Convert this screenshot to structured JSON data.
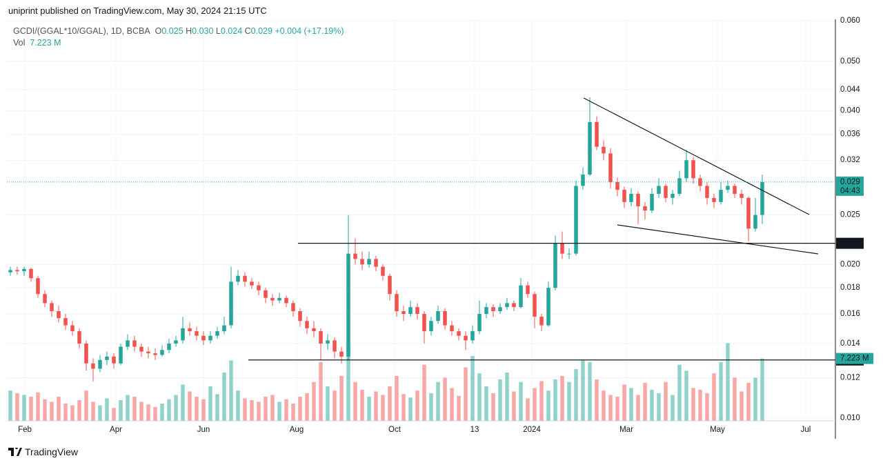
{
  "header": {
    "published": "uniprint published on TradingView.com, May 30, 2024 21:15 UTC",
    "symbol": "GCDI/(GGAL*10/GGAL), 1D, BCBA",
    "legend": [
      {
        "key": "O",
        "value": 0.025
      },
      {
        "key": "H",
        "value": 0.03,
        "label": "0.030"
      },
      {
        "key": "L",
        "value": 0.024
      },
      {
        "key": "C",
        "value": 0.029
      }
    ],
    "change": "+0.004 (+17.19%)",
    "vol_key": "Vol",
    "vol_value": "7.223 M"
  },
  "chart_data": {
    "type": "candlestick",
    "log_scale": true,
    "grid": true,
    "up_color": "#26a69a",
    "down_color": "#ef5350",
    "xlim": [
      -0.5,
      119.5
    ],
    "xticks": [
      {
        "value": 2.1,
        "label": "Feb"
      },
      {
        "value": 15.3,
        "label": "Apr"
      },
      {
        "value": 28,
        "label": "Jun"
      },
      {
        "value": 41.5,
        "label": "Aug"
      },
      {
        "value": 55.7,
        "label": "Oct"
      },
      {
        "value": 67.3,
        "label": "13"
      },
      {
        "value": 75.6,
        "label": "2024"
      },
      {
        "value": 89.3,
        "label": "Mar"
      },
      {
        "value": 102.5,
        "label": "May"
      },
      {
        "value": 115.3,
        "label": "Jul"
      }
    ],
    "ylim": [
      0.00988,
      0.0604
    ],
    "yticks": [
      {
        "value": 0.01,
        "label": "0.010"
      },
      0.012,
      0.014,
      0.016,
      0.018,
      {
        "value": 0.02,
        "label": "0.020"
      },
      0.025,
      0.032,
      0.036,
      {
        "value": 0.04,
        "label": "0.040"
      },
      0.044,
      {
        "value": 0.05,
        "label": "0.050"
      },
      {
        "value": 0.06,
        "label": "0.060"
      }
    ],
    "vlim": [
      0,
      46.5
    ],
    "candles": [
      [
        0.0193,
        0.0198,
        0.019,
        0.0195
      ],
      [
        0.0195,
        0.0198,
        0.0191,
        0.0194
      ],
      [
        0.0194,
        0.0198,
        0.019,
        0.0196
      ],
      [
        0.0196,
        0.0197,
        0.0185,
        0.0188
      ],
      [
        0.0188,
        0.019,
        0.0172,
        0.0175
      ],
      [
        0.0175,
        0.0178,
        0.0165,
        0.0168
      ],
      [
        0.0168,
        0.017,
        0.0158,
        0.0162
      ],
      [
        0.0162,
        0.0166,
        0.0154,
        0.0157
      ],
      [
        0.0157,
        0.016,
        0.0149,
        0.0152
      ],
      [
        0.0152,
        0.0155,
        0.0145,
        0.0148
      ],
      [
        0.0148,
        0.015,
        0.0137,
        0.014
      ],
      [
        0.014,
        0.0142,
        0.0124,
        0.0128
      ],
      [
        0.0128,
        0.0131,
        0.0118,
        0.0125
      ],
      [
        0.0125,
        0.0133,
        0.0123,
        0.013
      ],
      [
        0.013,
        0.0135,
        0.0127,
        0.0132
      ],
      [
        0.0132,
        0.0134,
        0.0125,
        0.0128
      ],
      [
        0.0128,
        0.014,
        0.0127,
        0.0138
      ],
      [
        0.0138,
        0.0146,
        0.0136,
        0.0142
      ],
      [
        0.0142,
        0.0145,
        0.0135,
        0.0138
      ],
      [
        0.0138,
        0.014,
        0.0132,
        0.0135
      ],
      [
        0.0135,
        0.0138,
        0.0131,
        0.0134
      ],
      [
        0.0134,
        0.0137,
        0.013,
        0.0133
      ],
      [
        0.0133,
        0.0139,
        0.0132,
        0.0136
      ],
      [
        0.0136,
        0.0143,
        0.0134,
        0.014
      ],
      [
        0.014,
        0.0145,
        0.0138,
        0.0142
      ],
      [
        0.0142,
        0.0158,
        0.014,
        0.015
      ],
      [
        0.015,
        0.0154,
        0.0145,
        0.0148
      ],
      [
        0.0148,
        0.0151,
        0.0142,
        0.0145
      ],
      [
        0.0145,
        0.0148,
        0.0139,
        0.0142
      ],
      [
        0.0142,
        0.0148,
        0.014,
        0.0145
      ],
      [
        0.0145,
        0.0151,
        0.0143,
        0.0148
      ],
      [
        0.0148,
        0.0158,
        0.0146,
        0.0152
      ],
      [
        0.0152,
        0.0198,
        0.015,
        0.0185
      ],
      [
        0.0185,
        0.0195,
        0.0182,
        0.019
      ],
      [
        0.019,
        0.0193,
        0.0181,
        0.0185
      ],
      [
        0.0185,
        0.0188,
        0.0179,
        0.0182
      ],
      [
        0.0182,
        0.0185,
        0.0174,
        0.0178
      ],
      [
        0.0178,
        0.018,
        0.0168,
        0.0172
      ],
      [
        0.0172,
        0.0175,
        0.0166,
        0.017
      ],
      [
        0.017,
        0.0176,
        0.0168,
        0.0172
      ],
      [
        0.0172,
        0.0174,
        0.0165,
        0.0168
      ],
      [
        0.0168,
        0.017,
        0.0158,
        0.0162
      ],
      [
        0.0162,
        0.0164,
        0.0151,
        0.0155
      ],
      [
        0.0155,
        0.0158,
        0.0146,
        0.015
      ],
      [
        0.015,
        0.0155,
        0.0144,
        0.0148
      ],
      [
        0.0148,
        0.015,
        0.013,
        0.014
      ],
      [
        0.014,
        0.0146,
        0.0136,
        0.0142
      ],
      [
        0.0142,
        0.0144,
        0.0131,
        0.0135
      ],
      [
        0.0135,
        0.0138,
        0.0128,
        0.0132
      ],
      [
        0.0132,
        0.025,
        0.013,
        0.021
      ],
      [
        0.021,
        0.0225,
        0.02,
        0.0205
      ],
      [
        0.0205,
        0.0212,
        0.0195,
        0.02
      ],
      [
        0.02,
        0.0212,
        0.0197,
        0.0205
      ],
      [
        0.0205,
        0.0208,
        0.0194,
        0.0198
      ],
      [
        0.0198,
        0.02,
        0.0186,
        0.019
      ],
      [
        0.019,
        0.0192,
        0.017,
        0.0175
      ],
      [
        0.0175,
        0.0178,
        0.0158,
        0.0162
      ],
      [
        0.0162,
        0.0166,
        0.0155,
        0.016
      ],
      [
        0.016,
        0.017,
        0.0158,
        0.0165
      ],
      [
        0.0165,
        0.0168,
        0.0156,
        0.016
      ],
      [
        0.016,
        0.0162,
        0.014,
        0.0148
      ],
      [
        0.0148,
        0.0158,
        0.0145,
        0.0155
      ],
      [
        0.0155,
        0.0166,
        0.0153,
        0.0162
      ],
      [
        0.0162,
        0.0164,
        0.0149,
        0.0152
      ],
      [
        0.0152,
        0.0155,
        0.0145,
        0.0148
      ],
      [
        0.0148,
        0.015,
        0.0142,
        0.0145
      ],
      [
        0.0145,
        0.0148,
        0.0136,
        0.0142
      ],
      [
        0.0142,
        0.0152,
        0.014,
        0.0148
      ],
      [
        0.0148,
        0.017,
        0.0146,
        0.016
      ],
      [
        0.016,
        0.0168,
        0.0157,
        0.0165
      ],
      [
        0.0165,
        0.0167,
        0.0158,
        0.0162
      ],
      [
        0.0162,
        0.0168,
        0.016,
        0.0165
      ],
      [
        0.0165,
        0.0172,
        0.0163,
        0.0168
      ],
      [
        0.0168,
        0.017,
        0.0162,
        0.0165
      ],
      [
        0.0165,
        0.0188,
        0.0164,
        0.0182
      ],
      [
        0.0182,
        0.0185,
        0.0172,
        0.0175
      ],
      [
        0.0175,
        0.0177,
        0.015,
        0.0158
      ],
      [
        0.0158,
        0.016,
        0.0148,
        0.0152
      ],
      [
        0.0152,
        0.0185,
        0.0151,
        0.018
      ],
      [
        0.018,
        0.0228,
        0.0178,
        0.022
      ],
      [
        0.022,
        0.0232,
        0.0205,
        0.021
      ],
      [
        0.021,
        0.0215,
        0.0205,
        0.021
      ],
      [
        0.021,
        0.0292,
        0.0208,
        0.0285
      ],
      [
        0.0285,
        0.031,
        0.028,
        0.03
      ],
      [
        0.03,
        0.0425,
        0.0298,
        0.038
      ],
      [
        0.038,
        0.039,
        0.0335,
        0.034
      ],
      [
        0.034,
        0.035,
        0.032,
        0.033
      ],
      [
        0.033,
        0.0338,
        0.0282,
        0.029
      ],
      [
        0.029,
        0.0296,
        0.0272,
        0.028
      ],
      [
        0.028,
        0.0284,
        0.0258,
        0.0265
      ],
      [
        0.0265,
        0.0282,
        0.026,
        0.0275
      ],
      [
        0.0275,
        0.0278,
        0.024,
        0.026
      ],
      [
        0.026,
        0.0265,
        0.0245,
        0.0255
      ],
      [
        0.0255,
        0.0282,
        0.0252,
        0.0275
      ],
      [
        0.0275,
        0.0295,
        0.027,
        0.0285
      ],
      [
        0.0285,
        0.0288,
        0.0265,
        0.027
      ],
      [
        0.027,
        0.028,
        0.0262,
        0.0275
      ],
      [
        0.0275,
        0.0305,
        0.0272,
        0.0295
      ],
      [
        0.0295,
        0.0335,
        0.029,
        0.032
      ],
      [
        0.032,
        0.0325,
        0.0288,
        0.0295
      ],
      [
        0.0295,
        0.03,
        0.0278,
        0.0285
      ],
      [
        0.0285,
        0.029,
        0.0262,
        0.027
      ],
      [
        0.027,
        0.0275,
        0.0258,
        0.0265
      ],
      [
        0.0265,
        0.029,
        0.0262,
        0.028
      ],
      [
        0.028,
        0.0292,
        0.0276,
        0.0285
      ],
      [
        0.0285,
        0.0288,
        0.027,
        0.0275
      ],
      [
        0.0275,
        0.028,
        0.0262,
        0.027
      ],
      [
        0.027,
        0.0272,
        0.0222,
        0.0235
      ],
      [
        0.0235,
        0.027,
        0.0232,
        0.025
      ],
      [
        0.025,
        0.03,
        0.024,
        0.029
      ]
    ],
    "volume": [
      3.5,
      3.2,
      3.0,
      2.8,
      3.3,
      2.5,
      2.2,
      2.8,
      2.0,
      1.8,
      2.4,
      3.5,
      2.2,
      1.8,
      2.6,
      1.5,
      2.4,
      3.0,
      2.8,
      2.2,
      1.9,
      1.6,
      2.0,
      2.5,
      3.0,
      4.2,
      3.4,
      2.8,
      2.5,
      4.0,
      3.1,
      5.6,
      7.0,
      3.5,
      2.6,
      2.4,
      2.2,
      2.8,
      3.0,
      2.2,
      2.5,
      2.0,
      2.8,
      3.2,
      4.5,
      6.8,
      4.0,
      3.5,
      5.2,
      8.8,
      4.5,
      3.6,
      2.8,
      3.4,
      3.0,
      4.0,
      5.2,
      3.1,
      2.7,
      3.5,
      6.5,
      3.2,
      4.5,
      5.0,
      3.8,
      2.9,
      6.2,
      7.5,
      5.5,
      4.0,
      3.2,
      4.8,
      5.6,
      3.4,
      4.5,
      2.6,
      3.8,
      4.6,
      3.5,
      4.8,
      5.2,
      4.5,
      6.0,
      7.0,
      6.8,
      4.8,
      3.5,
      3.0,
      2.8,
      4.2,
      3.8,
      3.0,
      4.4,
      3.6,
      3.2,
      4.5,
      3.0,
      6.5,
      5.8,
      3.8,
      3.6,
      3.2,
      5.5,
      6.8,
      9.0,
      5.0,
      3.4,
      4.4,
      5.0,
      7.223
    ],
    "last_price": 0.029,
    "countdown": "04:43",
    "volume_label": "7.223 M",
    "hlines": [
      0.022,
      0.013
    ]
  },
  "footer": {
    "brand": "TradingView"
  }
}
